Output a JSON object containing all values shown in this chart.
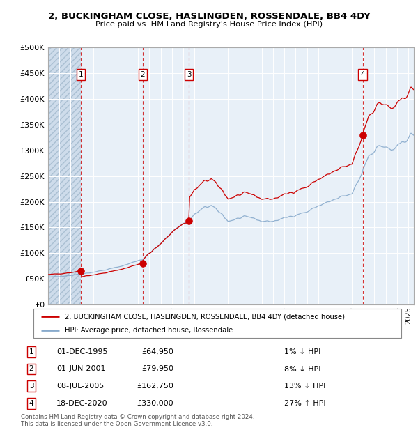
{
  "title1": "2, BUCKINGHAM CLOSE, HASLINGDEN, ROSSENDALE, BB4 4DY",
  "title2": "Price paid vs. HM Land Registry's House Price Index (HPI)",
  "xlim_start": 1993.0,
  "xlim_end": 2025.5,
  "ylim_min": 0,
  "ylim_max": 500000,
  "yticks": [
    0,
    50000,
    100000,
    150000,
    200000,
    250000,
    300000,
    350000,
    400000,
    450000,
    500000
  ],
  "ytick_labels": [
    "£0",
    "£50K",
    "£100K",
    "£150K",
    "£200K",
    "£250K",
    "£300K",
    "£350K",
    "£400K",
    "£450K",
    "£500K"
  ],
  "transactions": [
    {
      "num": 1,
      "date": "01-DEC-1995",
      "price": 64950,
      "year": 1995.92,
      "pct": "1%",
      "dir": "↓"
    },
    {
      "num": 2,
      "date": "01-JUN-2001",
      "price": 79950,
      "year": 2001.42,
      "pct": "8%",
      "dir": "↓"
    },
    {
      "num": 3,
      "date": "08-JUL-2005",
      "price": 162750,
      "year": 2005.52,
      "pct": "13%",
      "dir": "↓"
    },
    {
      "num": 4,
      "date": "18-DEC-2020",
      "price": 330000,
      "year": 2020.96,
      "pct": "27%",
      "dir": "↑"
    }
  ],
  "legend_line1": "2, BUCKINGHAM CLOSE, HASLINGDEN, ROSSENDALE, BB4 4DY (detached house)",
  "legend_line2": "HPI: Average price, detached house, Rossendale",
  "footer1": "Contains HM Land Registry data © Crown copyright and database right 2024.",
  "footer2": "This data is licensed under the Open Government Licence v3.0.",
  "sale_color": "#cc0000",
  "hpi_color": "#88aacc",
  "grid_color": "#cccccc",
  "hatch_color": "#c8d8e8"
}
